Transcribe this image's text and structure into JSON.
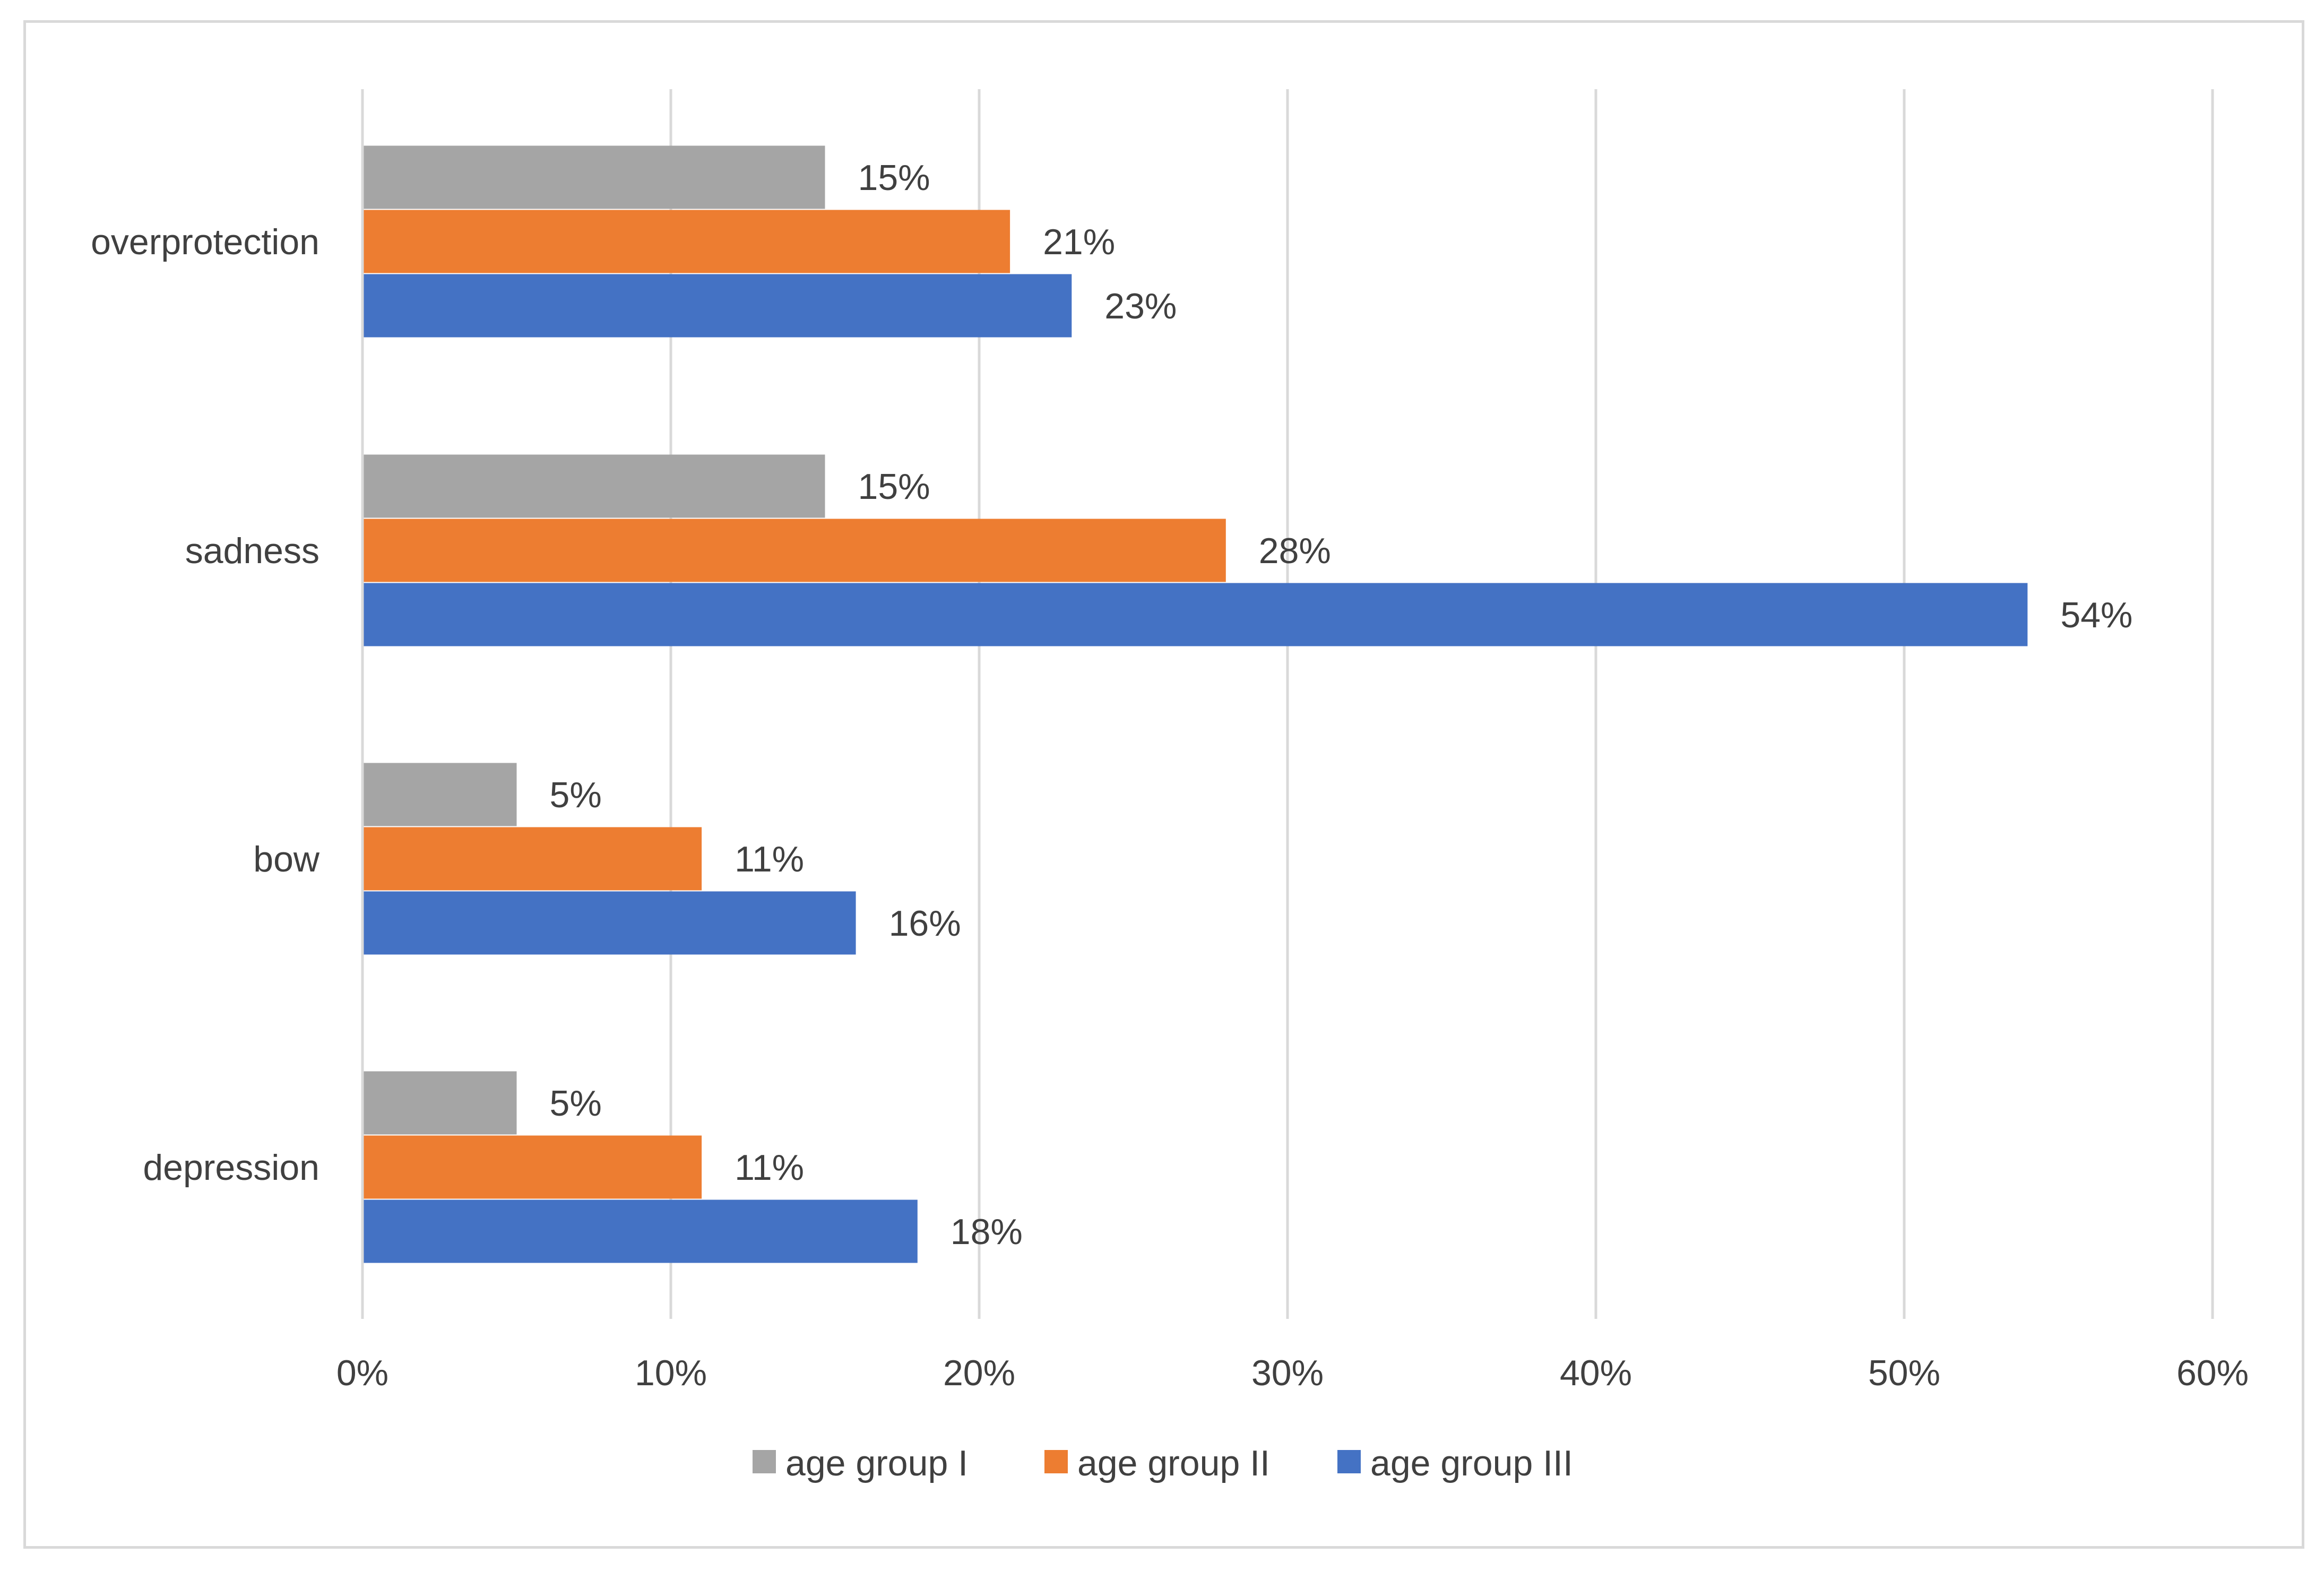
{
  "chart_data": {
    "type": "bar",
    "orientation": "horizontal",
    "title": "",
    "xlabel": "",
    "ylabel": "",
    "categories": [
      "overprotection",
      "sadness",
      "bow",
      "depression"
    ],
    "series": [
      {
        "name": "age group I",
        "color": "#a5a5a5",
        "values": [
          15,
          15,
          5,
          5
        ],
        "labels": [
          "15%",
          "15%",
          "5%",
          "5%"
        ]
      },
      {
        "name": "age group II",
        "color": "#ed7d31",
        "values": [
          21,
          28,
          11,
          11
        ],
        "labels": [
          "21%",
          "28%",
          "11%",
          "11%"
        ]
      },
      {
        "name": "age group III",
        "color": "#4472c4",
        "values": [
          23,
          54,
          16,
          18
        ],
        "labels": [
          "23%",
          "54%",
          "16%",
          "18%"
        ]
      }
    ],
    "xlim": [
      0,
      60
    ],
    "xticks": [
      0,
      10,
      20,
      30,
      40,
      50,
      60
    ],
    "xtick_labels": [
      "0%",
      "10%",
      "20%",
      "30%",
      "40%",
      "50%",
      "60%"
    ],
    "grid": true,
    "gridline_color": "#d9d9d9",
    "legend_position": "bottom"
  }
}
